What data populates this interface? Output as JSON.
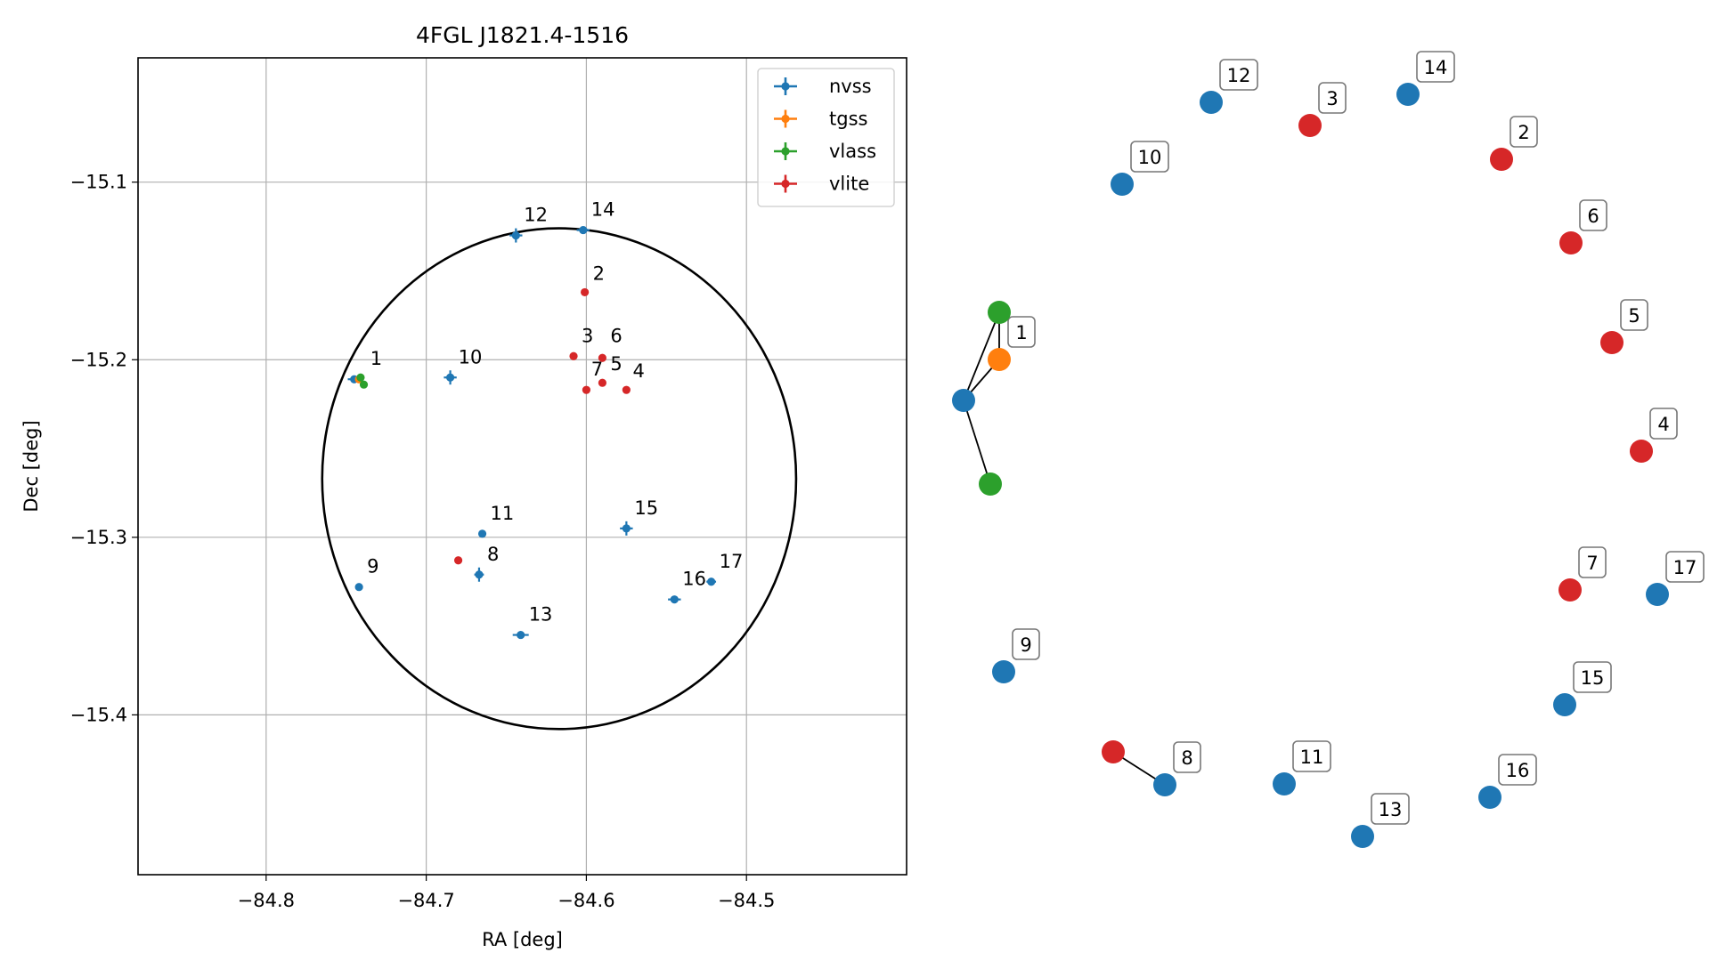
{
  "chart_data": [
    {
      "type": "scatter",
      "title": "4FGL J1821.4-1516",
      "xlabel": "RA [deg]",
      "ylabel": "Dec [deg]",
      "xlim": [
        -84.88,
        -84.4
      ],
      "ylim": [
        -15.49,
        -15.03
      ],
      "x_reversed": false,
      "grid": true,
      "x_ticks": [
        -84.8,
        -84.7,
        -84.6,
        -84.5
      ],
      "x_tick_labels": [
        "−84.8",
        "−84.7",
        "−84.6",
        "−84.5"
      ],
      "y_ticks": [
        -15.1,
        -15.2,
        -15.3,
        -15.4
      ],
      "y_tick_labels": [
        "−15.1",
        "−15.2",
        "−15.3",
        "−15.4"
      ],
      "legend_position": "top-right",
      "series": [
        {
          "name": "nvss",
          "color": "#1f77b4",
          "points": [
            {
              "label": "1",
              "ra": -84.745,
              "dec": -15.211,
              "ra_err": 0.004,
              "dec_err": 0.001
            },
            {
              "label": "9",
              "ra": -84.742,
              "dec": -15.328,
              "ra_err": 0.001,
              "dec_err": 0.001
            },
            {
              "label": "10",
              "ra": -84.685,
              "dec": -15.21,
              "ra_err": 0.004,
              "dec_err": 0.004
            },
            {
              "label": "11",
              "ra": -84.665,
              "dec": -15.298,
              "ra_err": 0.001,
              "dec_err": 0.001
            },
            {
              "label": "8",
              "ra": -84.667,
              "dec": -15.321,
              "ra_err": 0.003,
              "dec_err": 0.004
            },
            {
              "label": "12",
              "ra": -84.644,
              "dec": -15.13,
              "ra_err": 0.004,
              "dec_err": 0.004
            },
            {
              "label": "13",
              "ra": -84.641,
              "dec": -15.355,
              "ra_err": 0.005,
              "dec_err": 0.001
            },
            {
              "label": "14",
              "ra": -84.602,
              "dec": -15.127,
              "ra_err": 0.004,
              "dec_err": 0.002
            },
            {
              "label": "15",
              "ra": -84.575,
              "dec": -15.295,
              "ra_err": 0.004,
              "dec_err": 0.004
            },
            {
              "label": "16",
              "ra": -84.545,
              "dec": -15.335,
              "ra_err": 0.004,
              "dec_err": 0.001
            },
            {
              "label": "17",
              "ra": -84.522,
              "dec": -15.325,
              "ra_err": 0.003,
              "dec_err": 0.001
            }
          ]
        },
        {
          "name": "tgss",
          "color": "#ff7f0e",
          "points": [
            {
              "label": "1",
              "ra": -84.742,
              "dec": -15.211,
              "ra_err": 0.002,
              "dec_err": 0.002
            }
          ]
        },
        {
          "name": "vlass",
          "color": "#2ca02c",
          "points": [
            {
              "label": "1",
              "ra": -84.741,
              "dec": -15.21,
              "ra_err": 0.0,
              "dec_err": 0.0
            },
            {
              "label": "1",
              "ra": -84.739,
              "dec": -15.214,
              "ra_err": 0.0,
              "dec_err": 0.0
            }
          ]
        },
        {
          "name": "vlite",
          "color": "#d62728",
          "points": [
            {
              "label": "2",
              "ra": -84.601,
              "dec": -15.162,
              "ra_err": 0.0,
              "dec_err": 0.0
            },
            {
              "label": "3",
              "ra": -84.608,
              "dec": -15.198,
              "ra_err": 0.0,
              "dec_err": 0.0
            },
            {
              "label": "6",
              "ra": -84.59,
              "dec": -15.199,
              "ra_err": 0.0,
              "dec_err": 0.0
            },
            {
              "label": "7",
              "ra": -84.6,
              "dec": -15.217,
              "ra_err": 0.0,
              "dec_err": 0.0
            },
            {
              "label": "5",
              "ra": -84.59,
              "dec": -15.213,
              "ra_err": 0.0,
              "dec_err": 0.0
            },
            {
              "label": "4",
              "ra": -84.575,
              "dec": -15.217,
              "ra_err": 0.0,
              "dec_err": 0.0
            },
            {
              "label": "8",
              "ra": -84.68,
              "dec": -15.313,
              "ra_err": 0.0,
              "dec_err": 0.0
            }
          ]
        }
      ],
      "ellipse": {
        "center_ra": -84.617,
        "center_dec": -15.267,
        "semi_ra": 0.148,
        "semi_dec": 0.141,
        "color": "#000000"
      },
      "labels": [
        {
          "text": "1",
          "ra": -84.735,
          "dec": -15.203
        },
        {
          "text": "2",
          "ra": -84.596,
          "dec": -15.155
        },
        {
          "text": "3",
          "ra": -84.603,
          "dec": -15.19
        },
        {
          "text": "6",
          "ra": -84.585,
          "dec": -15.19
        },
        {
          "text": "5",
          "ra": -84.585,
          "dec": -15.206
        },
        {
          "text": "7",
          "ra": -84.597,
          "dec": -15.209
        },
        {
          "text": "4",
          "ra": -84.571,
          "dec": -15.21
        },
        {
          "text": "9",
          "ra": -84.737,
          "dec": -15.32
        },
        {
          "text": "10",
          "ra": -84.68,
          "dec": -15.202
        },
        {
          "text": "11",
          "ra": -84.66,
          "dec": -15.29
        },
        {
          "text": "8",
          "ra": -84.662,
          "dec": -15.313
        },
        {
          "text": "12",
          "ra": -84.639,
          "dec": -15.122
        },
        {
          "text": "13",
          "ra": -84.636,
          "dec": -15.347
        },
        {
          "text": "14",
          "ra": -84.597,
          "dec": -15.119
        },
        {
          "text": "15",
          "ra": -84.57,
          "dec": -15.287
        },
        {
          "text": "16",
          "ra": -84.54,
          "dec": -15.327
        },
        {
          "text": "17",
          "ra": -84.517,
          "dec": -15.317
        }
      ]
    },
    {
      "type": "network",
      "nodes": [
        {
          "id": "n1a",
          "label": "",
          "color": "#1f77b4"
        },
        {
          "id": "t1",
          "label": "1",
          "color": "#ff7f0e"
        },
        {
          "id": "v1a",
          "label": "",
          "color": "#2ca02c"
        },
        {
          "id": "v1b",
          "label": "",
          "color": "#2ca02c"
        },
        {
          "id": "n12",
          "label": "12",
          "color": "#1f77b4"
        },
        {
          "id": "r3",
          "label": "3",
          "color": "#d62728"
        },
        {
          "id": "n14",
          "label": "14",
          "color": "#1f77b4"
        },
        {
          "id": "r2",
          "label": "2",
          "color": "#d62728"
        },
        {
          "id": "n10",
          "label": "10",
          "color": "#1f77b4"
        },
        {
          "id": "r6",
          "label": "6",
          "color": "#d62728"
        },
        {
          "id": "r5",
          "label": "5",
          "color": "#d62728"
        },
        {
          "id": "r4",
          "label": "4",
          "color": "#d62728"
        },
        {
          "id": "r7",
          "label": "7",
          "color": "#d62728"
        },
        {
          "id": "n17",
          "label": "17",
          "color": "#1f77b4"
        },
        {
          "id": "n9",
          "label": "9",
          "color": "#1f77b4"
        },
        {
          "id": "n15",
          "label": "15",
          "color": "#1f77b4"
        },
        {
          "id": "r8",
          "label": "",
          "color": "#d62728"
        },
        {
          "id": "n8",
          "label": "8",
          "color": "#1f77b4"
        },
        {
          "id": "n11",
          "label": "11",
          "color": "#1f77b4"
        },
        {
          "id": "n16",
          "label": "16",
          "color": "#1f77b4"
        },
        {
          "id": "n13",
          "label": "13",
          "color": "#1f77b4"
        }
      ],
      "edges": [
        {
          "source": "n1a",
          "target": "v1a"
        },
        {
          "source": "n1a",
          "target": "t1"
        },
        {
          "source": "t1",
          "target": "v1a"
        },
        {
          "source": "n1a",
          "target": "v1b"
        },
        {
          "source": "r8",
          "target": "n8"
        }
      ]
    }
  ]
}
